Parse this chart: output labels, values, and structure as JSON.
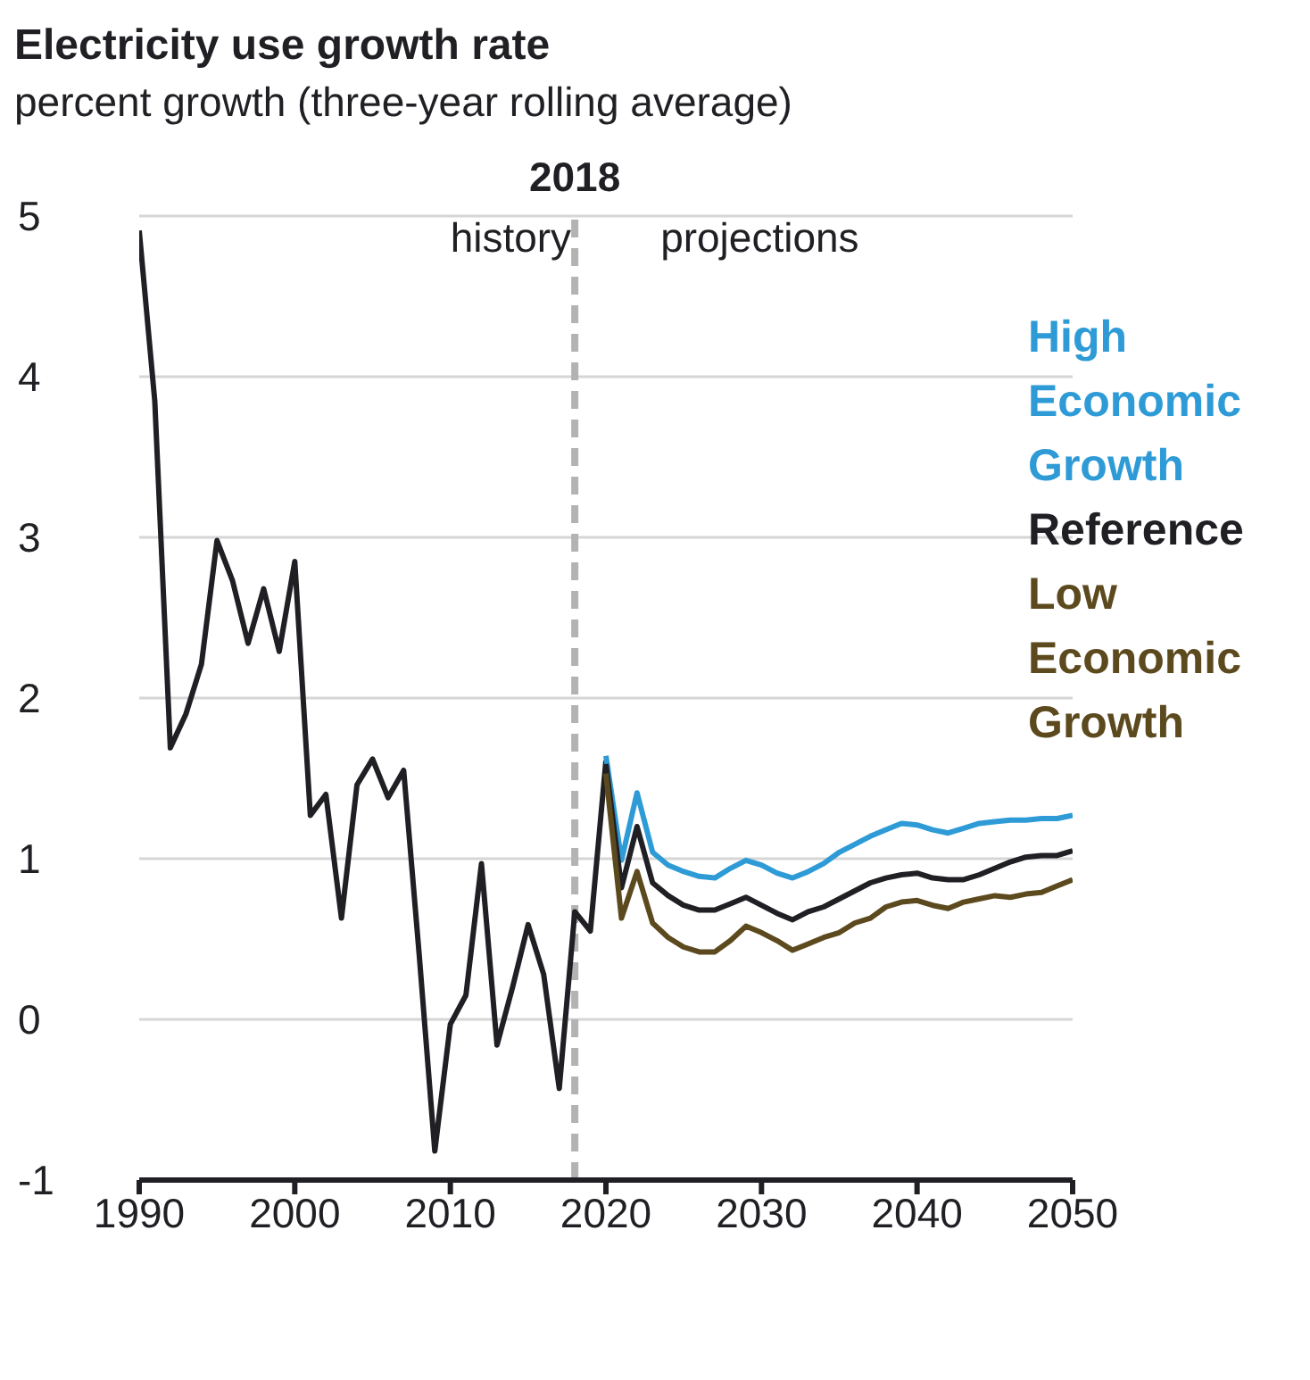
{
  "chart_data": {
    "type": "line",
    "title": "Electricity use growth rate",
    "subtitle": "percent growth (three-year rolling average)",
    "xlim": [
      1990,
      2050
    ],
    "xticks": [
      1990,
      2000,
      2010,
      2020,
      2030,
      2040,
      2050
    ],
    "ylim": [
      -1,
      5
    ],
    "yticks": [
      -1,
      0,
      1,
      2,
      3,
      4,
      5
    ],
    "grid": "y",
    "legend": "right",
    "annotations": [
      "history",
      "projections"
    ],
    "ref_lines": [
      {
        "axis": "x",
        "value": 2018,
        "label": "2018",
        "color": "#b3b3b3",
        "line_style": "dashed"
      }
    ],
    "series": [
      {
        "color": "#1f1f24",
        "x": [
          1990,
          1991,
          1992,
          1993,
          1994,
          1995,
          1996,
          1997,
          1998,
          1999,
          2000,
          2001,
          2002,
          2003,
          2004,
          2005,
          2006,
          2007,
          2008,
          2009,
          2010,
          2011,
          2012,
          2013,
          2014,
          2015,
          2016,
          2017,
          2018,
          2019,
          2020
        ],
        "values": [
          4.91,
          3.85,
          1.69,
          1.9,
          2.21,
          2.98,
          2.73,
          2.34,
          2.68,
          2.29,
          2.85,
          1.27,
          1.4,
          0.63,
          1.46,
          1.62,
          1.38,
          1.55,
          0.4,
          -0.82,
          -0.03,
          0.15,
          0.97,
          -0.16,
          0.2,
          0.59,
          0.28,
          -0.43,
          0.67,
          0.55,
          1.61
        ]
      },
      {
        "name": "High Economic Growth",
        "color": "#2e9bd6",
        "x": [
          2020,
          2021,
          2022,
          2023,
          2024,
          2025,
          2026,
          2027,
          2028,
          2029,
          2030,
          2031,
          2032,
          2033,
          2034,
          2035,
          2036,
          2037,
          2038,
          2039,
          2040,
          2041,
          2042,
          2043,
          2044,
          2045,
          2046,
          2047,
          2048,
          2049,
          2050
        ],
        "values": [
          1.64,
          0.99,
          1.41,
          1.04,
          0.96,
          0.92,
          0.89,
          0.88,
          0.94,
          0.99,
          0.96,
          0.91,
          0.88,
          0.92,
          0.97,
          1.04,
          1.09,
          1.14,
          1.18,
          1.22,
          1.21,
          1.18,
          1.16,
          1.19,
          1.22,
          1.23,
          1.24,
          1.24,
          1.25,
          1.25,
          1.27
        ]
      },
      {
        "name": "Reference",
        "color": "#1f1f24",
        "x": [
          2020,
          2021,
          2022,
          2023,
          2024,
          2025,
          2026,
          2027,
          2028,
          2029,
          2030,
          2031,
          2032,
          2033,
          2034,
          2035,
          2036,
          2037,
          2038,
          2039,
          2040,
          2041,
          2042,
          2043,
          2044,
          2045,
          2046,
          2047,
          2048,
          2049,
          2050
        ],
        "values": [
          1.59,
          0.82,
          1.2,
          0.85,
          0.77,
          0.71,
          0.68,
          0.68,
          0.72,
          0.76,
          0.71,
          0.66,
          0.62,
          0.67,
          0.7,
          0.75,
          0.8,
          0.85,
          0.88,
          0.9,
          0.91,
          0.88,
          0.87,
          0.87,
          0.9,
          0.94,
          0.98,
          1.01,
          1.02,
          1.02,
          1.05
        ]
      },
      {
        "name": "Low Economic Growth",
        "color": "#5c4a1e",
        "x": [
          2020,
          2021,
          2022,
          2023,
          2024,
          2025,
          2026,
          2027,
          2028,
          2029,
          2030,
          2031,
          2032,
          2033,
          2034,
          2035,
          2036,
          2037,
          2038,
          2039,
          2040,
          2041,
          2042,
          2043,
          2044,
          2045,
          2046,
          2047,
          2048,
          2049,
          2050
        ],
        "values": [
          1.53,
          0.63,
          0.92,
          0.6,
          0.51,
          0.45,
          0.42,
          0.42,
          0.49,
          0.58,
          0.54,
          0.49,
          0.43,
          0.47,
          0.51,
          0.54,
          0.6,
          0.63,
          0.7,
          0.73,
          0.74,
          0.71,
          0.69,
          0.73,
          0.75,
          0.77,
          0.76,
          0.78,
          0.79,
          0.83,
          0.87
        ]
      }
    ]
  }
}
